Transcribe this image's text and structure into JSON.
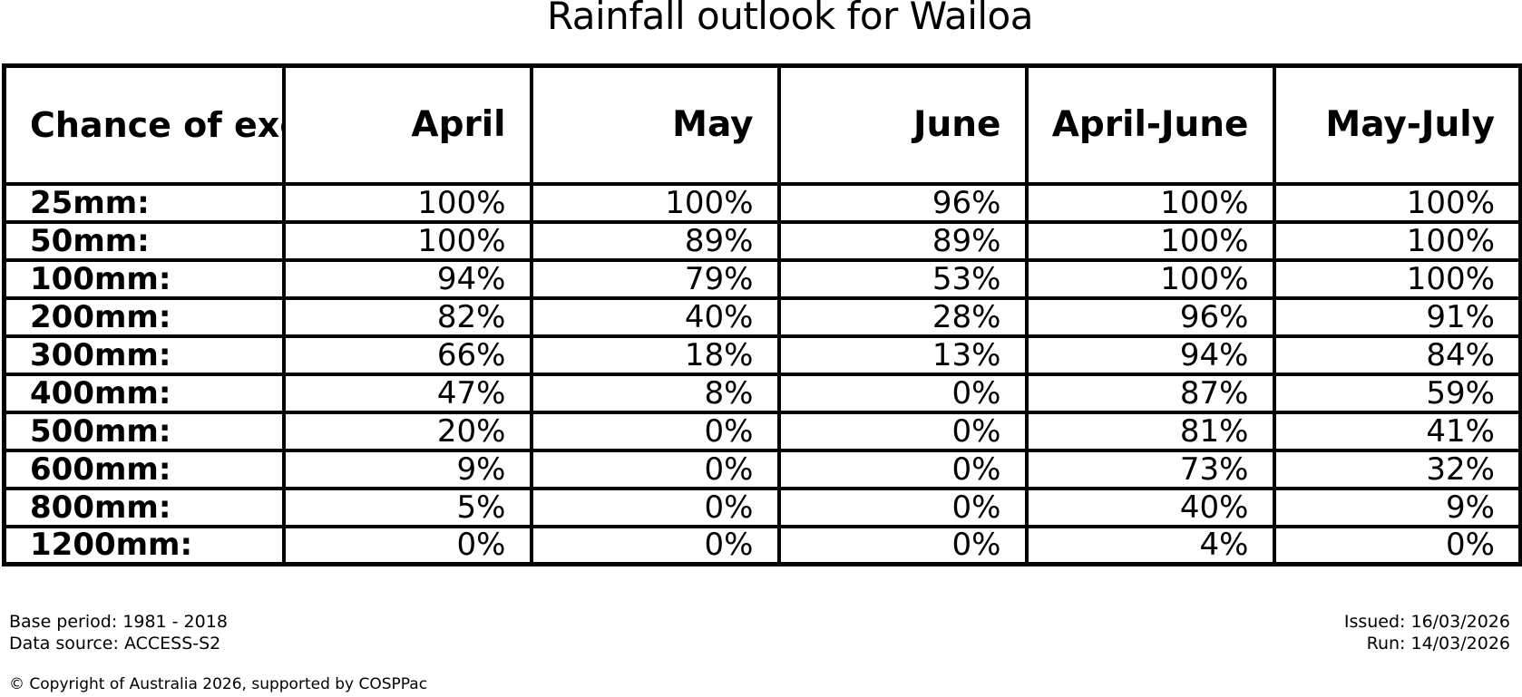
{
  "title": "Rainfall outlook for Wailoa",
  "table": {
    "corner_header": "Chance of\nexceeding\na threshold:",
    "columns": [
      "April",
      "May",
      "June",
      "April-June",
      "May-July"
    ],
    "rows": [
      {
        "threshold": "25mm:",
        "values": [
          "100%",
          "100%",
          "96%",
          "100%",
          "100%"
        ]
      },
      {
        "threshold": "50mm:",
        "values": [
          "100%",
          "89%",
          "89%",
          "100%",
          "100%"
        ]
      },
      {
        "threshold": "100mm:",
        "values": [
          "94%",
          "79%",
          "53%",
          "100%",
          "100%"
        ]
      },
      {
        "threshold": "200mm:",
        "values": [
          "82%",
          "40%",
          "28%",
          "96%",
          "91%"
        ]
      },
      {
        "threshold": "300mm:",
        "values": [
          "66%",
          "18%",
          "13%",
          "94%",
          "84%"
        ]
      },
      {
        "threshold": "400mm:",
        "values": [
          "47%",
          "8%",
          "0%",
          "87%",
          "59%"
        ]
      },
      {
        "threshold": "500mm:",
        "values": [
          "20%",
          "0%",
          "0%",
          "81%",
          "41%"
        ]
      },
      {
        "threshold": "600mm:",
        "values": [
          "9%",
          "0%",
          "0%",
          "73%",
          "32%"
        ]
      },
      {
        "threshold": "800mm:",
        "values": [
          "5%",
          "0%",
          "0%",
          "40%",
          "9%"
        ]
      },
      {
        "threshold": "1200mm:",
        "values": [
          "0%",
          "0%",
          "0%",
          "4%",
          "0%"
        ]
      }
    ]
  },
  "footer": {
    "base_period": "Base period: 1981 - 2018",
    "data_source": "Data source: ACCESS-S2",
    "issued": "Issued: 16/03/2026",
    "run": "Run: 14/03/2026",
    "copyright": "© Copyright of Australia 2026, supported by COSPPac"
  },
  "colors": {
    "text": "#000000",
    "background": "#ffffff",
    "border": "#000000"
  },
  "chart_data": {
    "type": "table",
    "title": "Rainfall outlook for Wailoa",
    "row_header_label": "Chance of exceeding a threshold:",
    "columns": [
      "April",
      "May",
      "June",
      "April-June",
      "May-July"
    ],
    "row_labels": [
      "25mm:",
      "50mm:",
      "100mm:",
      "200mm:",
      "300mm:",
      "400mm:",
      "500mm:",
      "600mm:",
      "800mm:",
      "1200mm:"
    ],
    "values_percent": [
      [
        100,
        100,
        96,
        100,
        100
      ],
      [
        100,
        89,
        89,
        100,
        100
      ],
      [
        94,
        79,
        53,
        100,
        100
      ],
      [
        82,
        40,
        28,
        96,
        91
      ],
      [
        66,
        18,
        13,
        94,
        84
      ],
      [
        47,
        8,
        0,
        87,
        59
      ],
      [
        20,
        0,
        0,
        81,
        41
      ],
      [
        9,
        0,
        0,
        73,
        32
      ],
      [
        5,
        0,
        0,
        40,
        9
      ],
      [
        0,
        0,
        0,
        4,
        0
      ]
    ],
    "annotations": [
      "Base period: 1981 - 2018",
      "Data source: ACCESS-S2",
      "Issued: 16/03/2026",
      "Run: 14/03/2026",
      "© Copyright of Australia 2026, supported by COSPPac"
    ]
  }
}
